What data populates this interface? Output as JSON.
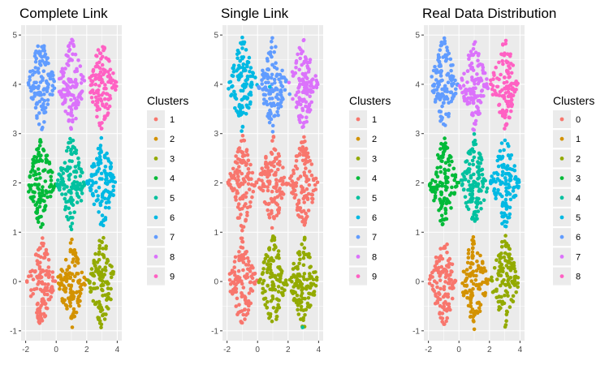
{
  "figure": {
    "background": "#ffffff",
    "panel_background": "#ebebeb",
    "grid_color": "#ffffff"
  },
  "palette9": [
    "#F8766D",
    "#D39200",
    "#93AA00",
    "#00BA38",
    "#00C19F",
    "#00B9E3",
    "#619CFF",
    "#DB72FB",
    "#FF61C3"
  ],
  "chart_data": [
    {
      "type": "scatter",
      "title": "Complete Link",
      "xlim": [
        -2.3,
        4.3
      ],
      "ylim": [
        -1.2,
        5.2
      ],
      "xticks": [
        -2,
        0,
        2,
        4
      ],
      "yticks": [
        -1,
        0,
        1,
        2,
        3,
        4,
        5
      ],
      "xlabel": "",
      "ylabel": "",
      "grid": true,
      "legend": {
        "title": "Clusters",
        "position": "right",
        "labels": [
          "1",
          "2",
          "3",
          "4",
          "5",
          "6",
          "7",
          "8",
          "9"
        ]
      },
      "point_groups": [
        {
          "center": [
            -1,
            0
          ],
          "cluster": 0
        },
        {
          "center": [
            1,
            0
          ],
          "cluster": 1
        },
        {
          "center": [
            3,
            0
          ],
          "cluster": 2
        },
        {
          "center": [
            -1,
            2
          ],
          "cluster": 3
        },
        {
          "center": [
            1,
            2
          ],
          "cluster": 4
        },
        {
          "center": [
            3,
            2
          ],
          "cluster": 5
        },
        {
          "center": [
            -1,
            4
          ],
          "cluster": 6
        },
        {
          "center": [
            1,
            4
          ],
          "cluster": 7
        },
        {
          "center": [
            3,
            4
          ],
          "cluster": 8
        }
      ]
    },
    {
      "type": "scatter",
      "title": "Single Link",
      "xlim": [
        -2.3,
        4.3
      ],
      "ylim": [
        -1.2,
        5.2
      ],
      "xticks": [
        -2,
        0,
        2,
        4
      ],
      "yticks": [
        -1,
        0,
        1,
        2,
        3,
        4,
        5
      ],
      "xlabel": "",
      "ylabel": "",
      "grid": true,
      "legend": {
        "title": "Clusters",
        "position": "right",
        "labels": [
          "1",
          "2",
          "3",
          "4",
          "5",
          "6",
          "7",
          "8",
          "9"
        ]
      },
      "point_groups": [
        {
          "center": [
            -1,
            0
          ],
          "cluster": 0
        },
        {
          "center": [
            1,
            0
          ],
          "cluster": 2
        },
        {
          "center": [
            3,
            0
          ],
          "cluster": 2
        },
        {
          "center": [
            -1,
            2
          ],
          "cluster": 0
        },
        {
          "center": [
            1,
            2
          ],
          "cluster": 0
        },
        {
          "center": [
            3,
            2
          ],
          "cluster": 0
        },
        {
          "center": [
            -1,
            4
          ],
          "cluster": 5
        },
        {
          "center": [
            1,
            4
          ],
          "cluster": 6
        },
        {
          "center": [
            3,
            4
          ],
          "cluster": 7
        }
      ],
      "outliers": [
        {
          "x": 2.95,
          "y": -0.93,
          "cluster": 4
        },
        {
          "x": 0.8,
          "y": 3.95,
          "cluster": 5
        },
        {
          "x": 2.1,
          "y": 3.8,
          "cluster": 6
        }
      ]
    },
    {
      "type": "scatter",
      "title": "Real Data Distribution",
      "xlim": [
        -2.3,
        4.3
      ],
      "ylim": [
        -1.2,
        5.2
      ],
      "xticks": [
        -2,
        0,
        2,
        4
      ],
      "yticks": [
        -1,
        0,
        1,
        2,
        3,
        4,
        5
      ],
      "xlabel": "",
      "ylabel": "",
      "grid": true,
      "legend": {
        "title": "Clusters",
        "position": "right",
        "labels": [
          "0",
          "1",
          "2",
          "3",
          "4",
          "5",
          "6",
          "7",
          "8"
        ]
      },
      "point_groups": [
        {
          "center": [
            -1,
            0
          ],
          "cluster": 0
        },
        {
          "center": [
            1,
            0
          ],
          "cluster": 1
        },
        {
          "center": [
            3,
            0
          ],
          "cluster": 2
        },
        {
          "center": [
            -1,
            2
          ],
          "cluster": 3
        },
        {
          "center": [
            1,
            2
          ],
          "cluster": 4
        },
        {
          "center": [
            3,
            2
          ],
          "cluster": 5
        },
        {
          "center": [
            -1,
            4
          ],
          "cluster": 6
        },
        {
          "center": [
            1,
            4
          ],
          "cluster": 7
        },
        {
          "center": [
            3,
            4
          ],
          "cluster": 8
        }
      ]
    }
  ]
}
